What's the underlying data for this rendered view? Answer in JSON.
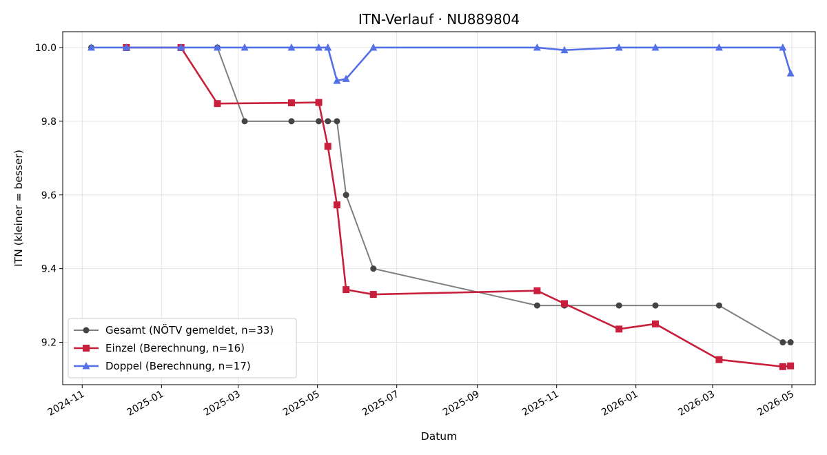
{
  "chart_data": {
    "type": "line",
    "title": "ITN-Verlauf · NU889804",
    "xlabel": "Datum",
    "ylabel": "ITN  (kleiner = besser)",
    "ylim": [
      9.085,
      10.043
    ],
    "xlim": [
      "2024-10-17",
      "2026-05-19"
    ],
    "x_ticks": [
      "2024-11",
      "2025-01",
      "2025-03",
      "2025-05",
      "2025-07",
      "2025-09",
      "2025-11",
      "2026-01",
      "2026-03",
      "2026-05"
    ],
    "y_ticks": [
      9.2,
      9.4,
      9.6,
      9.8,
      10.0
    ],
    "grid": true,
    "legend_position": "lower-left",
    "series": [
      {
        "name": "Gesamt (NÖTV gemeldet, n=33)",
        "color": "#444444",
        "line_color": "#7f7f7f",
        "marker": "circle",
        "points": [
          [
            "2024-11-08",
            10.0
          ],
          [
            "2024-12-05",
            10.0
          ],
          [
            "2025-01-16",
            10.0
          ],
          [
            "2025-02-13",
            10.0
          ],
          [
            "2025-03-06",
            9.8
          ],
          [
            "2025-04-11",
            9.8
          ],
          [
            "2025-05-02",
            9.8
          ],
          [
            "2025-05-09",
            9.8
          ],
          [
            "2025-05-16",
            9.8
          ],
          [
            "2025-05-23",
            9.6
          ],
          [
            "2025-06-13",
            9.4
          ],
          [
            "2025-10-17",
            9.3
          ],
          [
            "2025-11-07",
            9.3
          ],
          [
            "2025-12-19",
            9.3
          ],
          [
            "2026-01-16",
            9.3
          ],
          [
            "2026-03-06",
            9.3
          ],
          [
            "2026-04-24",
            9.2
          ],
          [
            "2026-04-30",
            9.2
          ]
        ]
      },
      {
        "name": "Einzel (Berechnung, n=16)",
        "color": "#c8203c",
        "line_color": "#c8203c",
        "marker": "square",
        "points": [
          [
            "2024-12-05",
            10.0
          ],
          [
            "2025-01-16",
            10.0
          ],
          [
            "2025-02-13",
            9.848
          ],
          [
            "2025-04-11",
            9.85
          ],
          [
            "2025-05-02",
            9.851
          ],
          [
            "2025-05-09",
            9.732
          ],
          [
            "2025-05-16",
            9.573
          ],
          [
            "2025-05-23",
            9.343
          ],
          [
            "2025-06-13",
            9.33
          ],
          [
            "2025-10-17",
            9.34
          ],
          [
            "2025-11-07",
            9.305
          ],
          [
            "2025-12-19",
            9.236
          ],
          [
            "2026-01-16",
            9.25
          ],
          [
            "2026-03-06",
            9.153
          ],
          [
            "2026-04-24",
            9.134
          ],
          [
            "2026-04-30",
            9.136
          ]
        ]
      },
      {
        "name": "Doppel (Berechnung, n=17)",
        "color": "#5470e6",
        "line_color": "#5470e6",
        "marker": "triangle",
        "points": [
          [
            "2024-11-08",
            10.0
          ],
          [
            "2024-12-05",
            10.0
          ],
          [
            "2025-01-16",
            10.0
          ],
          [
            "2025-02-13",
            10.0
          ],
          [
            "2025-03-06",
            10.0
          ],
          [
            "2025-04-11",
            10.0
          ],
          [
            "2025-05-02",
            10.0
          ],
          [
            "2025-05-09",
            10.0
          ],
          [
            "2025-05-16",
            9.91
          ],
          [
            "2025-05-23",
            9.915
          ],
          [
            "2025-06-13",
            10.0
          ],
          [
            "2025-10-17",
            10.0
          ],
          [
            "2025-11-07",
            9.993
          ],
          [
            "2025-12-19",
            10.0
          ],
          [
            "2026-01-16",
            10.0
          ],
          [
            "2026-03-06",
            10.0
          ],
          [
            "2026-04-24",
            10.0
          ],
          [
            "2026-04-30",
            9.93
          ]
        ]
      }
    ]
  }
}
